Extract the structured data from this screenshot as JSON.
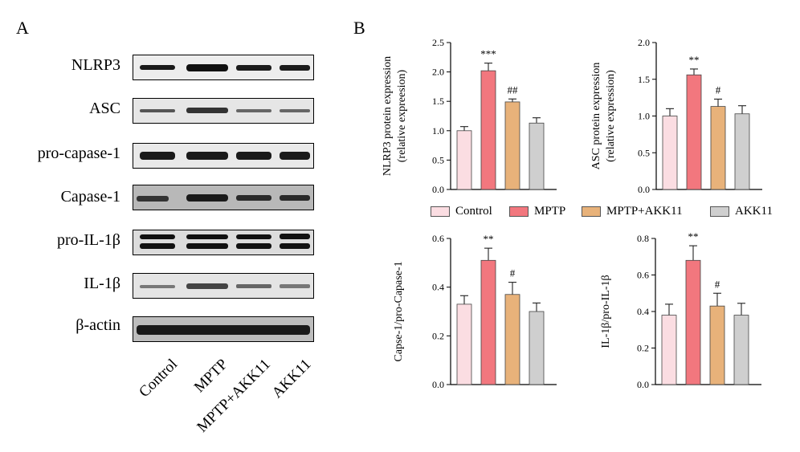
{
  "panel_a": {
    "letter": "A",
    "rows": [
      "NLRP3",
      "ASC",
      "pro-capase-1",
      "Capase-1",
      "pro-IL-1β",
      "IL-1β",
      "β-actin"
    ],
    "lanes": [
      "Control",
      "MPTP",
      "MPTP+AKK11",
      "AKK11"
    ]
  },
  "panel_b": {
    "letter": "B"
  },
  "legend": [
    "Control",
    "MPTP",
    "MPTP+AKK11",
    "AKK11"
  ],
  "colors": {
    "Control": "#fbdde2",
    "MPTP": "#f2777e",
    "MPTP+AKK11": "#e8b27a",
    "AKK11": "#cfcfcf"
  },
  "chart_data": [
    {
      "type": "bar",
      "ylabel": [
        "NLRP3 protein expression",
        "(relative expreesion)"
      ],
      "categories": [
        "Control",
        "MPTP",
        "MPTP+AKK11",
        "AKK11"
      ],
      "values": [
        1.0,
        2.02,
        1.49,
        1.13
      ],
      "errors": [
        0.07,
        0.13,
        0.05,
        0.09
      ],
      "annotations": [
        "",
        "***",
        "##",
        ""
      ],
      "ylim": [
        0,
        2.5
      ],
      "yticks": [
        "0.0",
        "0.5",
        "1.0",
        "1.5",
        "2.0",
        "2.5"
      ]
    },
    {
      "type": "bar",
      "ylabel": [
        "ASC protein expression",
        "(relative expression)"
      ],
      "categories": [
        "Control",
        "MPTP",
        "MPTP+AKK11",
        "AKK11"
      ],
      "values": [
        1.0,
        1.56,
        1.13,
        1.03
      ],
      "errors": [
        0.1,
        0.08,
        0.1,
        0.11
      ],
      "annotations": [
        "",
        "**",
        "#",
        ""
      ],
      "ylim": [
        0,
        2.0
      ],
      "yticks": [
        "0.0",
        "0.5",
        "1.0",
        "1.5",
        "2.0"
      ]
    },
    {
      "type": "bar",
      "ylabel": [
        "Capse-1/pro-Capase-1"
      ],
      "categories": [
        "Control",
        "MPTP",
        "MPTP+AKK11",
        "AKK11"
      ],
      "values": [
        0.33,
        0.51,
        0.37,
        0.3
      ],
      "errors": [
        0.035,
        0.05,
        0.05,
        0.035
      ],
      "annotations": [
        "",
        "**",
        "#",
        ""
      ],
      "ylim": [
        0,
        0.6
      ],
      "yticks": [
        "0.0",
        "0.2",
        "0.4",
        "0.6"
      ]
    },
    {
      "type": "bar",
      "ylabel": [
        "IL-1β/pro-IL-1β"
      ],
      "categories": [
        "Control",
        "MPTP",
        "MPTP+AKK11",
        "AKK11"
      ],
      "values": [
        0.38,
        0.68,
        0.43,
        0.38
      ],
      "errors": [
        0.06,
        0.08,
        0.07,
        0.065
      ],
      "annotations": [
        "",
        "**",
        "#",
        ""
      ],
      "ylim": [
        0,
        0.8
      ],
      "yticks": [
        "0.0",
        "0.2",
        "0.4",
        "0.6",
        "0.8"
      ]
    }
  ]
}
